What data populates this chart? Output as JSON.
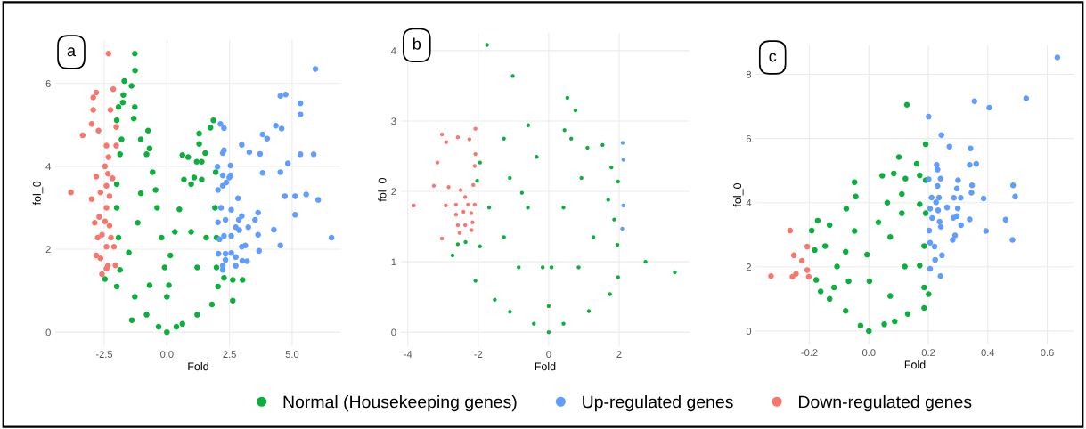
{
  "chart_data": [
    {
      "type": "scatter",
      "xlabel": "Fold",
      "ylabel": "fol_0",
      "annotations": [
        "a"
      ],
      "xlim": [
        -4.45,
        6.95
      ],
      "ylim": [
        -0.34,
        7.05
      ],
      "xticks": [
        {
          "value": -2.5,
          "label": "-2.5"
        },
        {
          "value": 0,
          "label": "0.0"
        },
        {
          "value": 2.5,
          "label": "2.5"
        },
        {
          "value": 5,
          "label": "5.0"
        }
      ],
      "yticks": [
        0,
        2,
        4,
        6
      ],
      "grid": true,
      "legend": "bottom",
      "marker": "circle",
      "series": [
        {
          "name": "Normal (Housekeeping genes)",
          "color": "#0bb03c",
          "x": [
            -1.28,
            -1.27,
            -1.7,
            -1.41,
            -1.74,
            -1.76,
            -1.93,
            -1.28,
            -2.0,
            -1.32,
            -0.75,
            -1.81,
            -1.04,
            -0.69,
            -1.87,
            -0.81,
            -0.57,
            -2.0,
            -0.45,
            -0.39,
            -2.0,
            -1.93,
            -0.21,
            -1.87,
            -2.47,
            -2.0,
            -0.09,
            0,
            -1.4,
            -1.28,
            -0.81,
            0,
            -0.33,
            0.38,
            -0.69,
            -1.52,
            -1.16,
            -1.04,
            1.86,
            1.74,
            1.29,
            1.29,
            0.62,
            0.85,
            1.53,
            1.19,
            1.39,
            1.95,
            0.68,
            1.09,
            1.39,
            0.97,
            0.5,
            0.32,
            0.14,
            0.08,
            1.92,
            1.98,
            1.98,
            2.28,
            2.63,
            3.02,
            2.63,
            2.04,
            1.8,
            1.21,
            0.62,
            1.21,
            0.97,
            1.57
          ],
          "values": [
            6.72,
            6.31,
            6.06,
            5.94,
            5.72,
            5.54,
            5.43,
            5.43,
            5.11,
            5.15,
            4.86,
            4.65,
            4.65,
            4.43,
            4.29,
            4.29,
            3.86,
            3.57,
            3.43,
            3.0,
            3.0,
            2.28,
            2.28,
            1.5,
            1.28,
            1.1,
            1.56,
            0.85,
            0.29,
            0.85,
            0.42,
            0,
            0.13,
            0.13,
            1.13,
            1.92,
            2.64,
            3.35,
            5.11,
            4.93,
            4.79,
            4.54,
            4.27,
            4.22,
            4.32,
            4.11,
            4.11,
            3.86,
            3.68,
            3.73,
            3.68,
            3.57,
            2.96,
            2.42,
            1.85,
            1.13,
            3.0,
            2.28,
            1.56,
            1.31,
            1.26,
            1.26,
            0.76,
            1.1,
            0.67,
            0.42,
            0.2,
            1.56,
            2.42,
            2.28
          ]
        },
        {
          "name": "Up-regulated genes",
          "color": "#619cff",
          "x": [
            5.93,
            4.53,
            4.74,
            5.33,
            5.33,
            2.14,
            2.28,
            4.35,
            4.58,
            3.82,
            4.0,
            2.28,
            2.23,
            2.99,
            3.29,
            3.72,
            5.33,
            5.86,
            4.83,
            2.54,
            2.02,
            3.82,
            4.53,
            2.23,
            2.54,
            2.49,
            2.37,
            2.23,
            2.04,
            4.71,
            5.12,
            5.56,
            6.04,
            2.84,
            2.16,
            2.57,
            5.12,
            3.64,
            2.99,
            2.87,
            3.52,
            2.34,
            2.04,
            2.75,
            3.25,
            2.89,
            4.27,
            6.57,
            3.64,
            2.28,
            2.57,
            2.1,
            2.99,
            3.13,
            4.53,
            3.68,
            2.34,
            2.57,
            2.06,
            2.75,
            3.01,
            3.2,
            2.34,
            2.23,
            2.75,
            2.23
          ],
          "values": [
            6.35,
            5.7,
            5.73,
            5.52,
            5.25,
            5.02,
            4.92,
            4.98,
            4.91,
            4.77,
            4.67,
            4.39,
            4.32,
            4.52,
            4.34,
            4.3,
            4.29,
            4.29,
            4.07,
            4.02,
            3.99,
            3.84,
            3.86,
            3.78,
            3.78,
            3.73,
            3.61,
            3.53,
            3.43,
            3.28,
            3.28,
            3.32,
            3.19,
            3.23,
            3.0,
            2.95,
            2.83,
            2.88,
            2.8,
            2.71,
            2.71,
            2.71,
            2.65,
            2.53,
            2.53,
            2.46,
            2.47,
            2.28,
            2.35,
            2.32,
            2.32,
            2.24,
            2.06,
            2.09,
            2.09,
            1.96,
            1.89,
            1.91,
            1.89,
            1.81,
            1.72,
            1.71,
            1.74,
            1.6,
            1.6,
            1.5
          ]
        },
        {
          "name": "Down-regulated genes",
          "color": "#f8766d",
          "x": [
            -2.33,
            -2.94,
            -2.82,
            -2.14,
            -2.94,
            -2.25,
            -3.0,
            -2.73,
            -3.36,
            -2.02,
            -2.41,
            -2.02,
            -2.33,
            -2.47,
            -2.82,
            -2.35,
            -2.17,
            -2.41,
            -3.83,
            -3.0,
            -2.65,
            -2.29,
            -2.41,
            -2.7,
            -2.88,
            -2.47,
            -2.29,
            -2.59,
            -2.76,
            -2.23,
            -2.41,
            -2.11,
            -2.82,
            -2.65,
            -2.35,
            -2.05,
            -2.41,
            -2.59
          ],
          "values": [
            6.72,
            5.66,
            5.78,
            5.86,
            5.36,
            5.36,
            5.02,
            4.86,
            4.75,
            4.95,
            4.5,
            4.5,
            4.22,
            4.0,
            3.75,
            3.82,
            3.71,
            3.53,
            3.37,
            3.21,
            3.37,
            3.28,
            3.0,
            2.78,
            2.64,
            2.67,
            2.57,
            2.35,
            2.28,
            2.28,
            2.06,
            2.06,
            1.85,
            1.78,
            1.6,
            1.61,
            1.53,
            1.4
          ]
        }
      ]
    },
    {
      "type": "scatter",
      "xlabel": "Fold",
      "ylabel": "fol_0",
      "annotations": [
        "b"
      ],
      "xlim": [
        -4.2,
        4.0
      ],
      "ylim": [
        -0.2,
        4.25
      ],
      "xticks": [
        -4,
        -2,
        0,
        2
      ],
      "yticks": [
        0,
        1,
        2,
        3,
        4
      ],
      "grid": true,
      "marker": "circle",
      "series": [
        {
          "color": "#0bb03c",
          "x": [
            -1.75,
            -1.02,
            0.53,
            0.76,
            -0.58,
            -1.27,
            0.45,
            1.53,
            0.64,
            1.78,
            1.97,
            -1.95,
            -2.03,
            2.75,
            3.58,
            1.97,
            1.74,
            1.14,
            1.95,
            1.86,
            1.69,
            -2.73,
            -2.58,
            -2.36,
            -2.08,
            -1.53,
            -1.1,
            -0.42,
            0,
            0.42,
            0,
            0.08,
            -0.17,
            -0.59,
            0.42,
            -1.1,
            0.93,
            -1.27,
            1.27,
            -0.85,
            0.85,
            -1.69,
            1.1,
            -0.34,
            -0.76,
            -1.95
          ],
          "values": [
            4.08,
            3.64,
            3.33,
            3.15,
            2.94,
            2.75,
            2.87,
            2.66,
            2.75,
            2.34,
            2.14,
            2.41,
            2.15,
            1.0,
            0.85,
            0.78,
            0.54,
            0.3,
            1.24,
            1.6,
            1.88,
            1.09,
            1.25,
            1.28,
            0.73,
            0.46,
            0.29,
            0.12,
            0,
            0.12,
            0.37,
            0.92,
            0.92,
            1.77,
            1.77,
            2.19,
            2.19,
            1.35,
            1.35,
            0.92,
            0.92,
            1.77,
            2.62,
            2.49,
            1.98,
            1.22
          ]
        },
        {
          "color": "#619cff",
          "x": [
            2.1,
            2.12,
            2.12,
            2.09
          ],
          "values": [
            2.69,
            2.45,
            1.8,
            1.47
          ]
        },
        {
          "color": "#f8766d",
          "x": [
            -3.03,
            -2.91,
            -2.58,
            -2.25,
            -2.08,
            -2.08,
            -3.16,
            -2.1,
            -3.26,
            -2.84,
            -2.5,
            -2.14,
            -3.83,
            -2.92,
            -2.63,
            -2.37,
            -2.29,
            -2.1,
            -2.63,
            -2.42,
            -2.2,
            -2.58,
            -2.37,
            -2.16,
            -2.53,
            -2.19,
            -3.03
          ],
          "values": [
            2.81,
            2.7,
            2.77,
            2.74,
            2.89,
            2.53,
            2.41,
            2.36,
            2.08,
            2.06,
            2.02,
            2.09,
            1.8,
            1.8,
            1.81,
            1.92,
            1.81,
            1.81,
            1.67,
            1.71,
            1.69,
            1.52,
            1.52,
            1.56,
            1.41,
            1.45,
            1.33
          ]
        }
      ]
    },
    {
      "type": "scatter",
      "xlabel": "Fold",
      "ylabel": "fol_0",
      "annotations": [
        "c"
      ],
      "xlim": [
        -0.38,
        0.69
      ],
      "ylim": [
        -0.42,
        8.9
      ],
      "xticks": [
        {
          "value": -0.2,
          "label": "-0.2"
        },
        {
          "value": 0,
          "label": "0.0"
        },
        {
          "value": 0.2,
          "label": "0.2"
        },
        {
          "value": 0.4,
          "label": "0.4"
        },
        {
          "value": 0.6,
          "label": "0.6"
        }
      ],
      "yticks": [
        0,
        2,
        4,
        6,
        8
      ],
      "grid": true,
      "marker": "circle",
      "series": [
        {
          "color": "#0bb03c",
          "x": [
            0.128,
            0.191,
            0.101,
            0.161,
            0.045,
            0.084,
            0.123,
            0.171,
            -0.048,
            0.191,
            -0.044,
            0.062,
            0.111,
            0.171,
            -0.076,
            -0.172,
            -0.192,
            -0.132,
            -0.182,
            -0.147,
            -0.177,
            -0.162,
            -0.132,
            -0.117,
            -0.078,
            -0.028,
            0,
            0.052,
            0.087,
            0.131,
            0.186,
            0.201,
            0.186,
            0.171,
            0.186,
            0.191,
            -0.006,
            0.002,
            -0.078,
            0.072,
            0.121,
            -0.068,
            0.072,
            -0.107,
            -0.048,
            0.032,
            0.111
          ],
          "values": [
            7.05,
            5.82,
            5.42,
            5.21,
            4.84,
            4.91,
            4.75,
            4.85,
            4.64,
            4.7,
            4.19,
            4.0,
            4.27,
            3.95,
            3.81,
            3.44,
            3.13,
            3.3,
            2.52,
            2.65,
            1.59,
            1.23,
            1.0,
            1.36,
            0.63,
            0.17,
            0,
            0.21,
            0.3,
            0.53,
            0.72,
            1.15,
            1.36,
            2.04,
            2.65,
            3.67,
            2.38,
            1.55,
            2.47,
            2.93,
            2.01,
            1.55,
            1.09,
            2.01,
            3.12,
            3.39,
            3.67
          ]
        },
        {
          "color": "#619cff",
          "x": [
            0.634,
            0.529,
            0.355,
            0.405,
            0.201,
            0.244,
            0.271,
            0.342,
            0.228,
            0.339,
            0.361,
            0.231,
            0.241,
            0.3,
            0.201,
            0.231,
            0.347,
            0.485,
            0.296,
            0.345,
            0.492,
            0.211,
            0.236,
            0.286,
            0.309,
            0.386,
            0.226,
            0.263,
            0.299,
            0.206,
            0.233,
            0.284,
            0.296,
            0.339,
            0.46,
            0.213,
            0.238,
            0.242,
            0.31,
            0.203,
            0.394,
            0.29,
            0.282,
            0.483,
            0.206,
            0.221,
            0.246,
            0.223,
            0.206,
            0.241
          ],
          "values": [
            8.53,
            7.25,
            7.16,
            6.96,
            6.68,
            6.11,
            5.75,
            5.69,
            5.18,
            5.18,
            5.21,
            5.03,
            4.75,
            4.7,
            4.73,
            4.52,
            4.54,
            4.54,
            4.44,
            4.31,
            4.19,
            4.16,
            4.16,
            4.15,
            4.15,
            4.13,
            4.01,
            3.85,
            3.82,
            3.81,
            3.76,
            3.53,
            3.58,
            3.48,
            3.47,
            3.52,
            3.41,
            3.25,
            3.3,
            3.13,
            3.12,
            2.98,
            2.84,
            2.84,
            2.75,
            2.63,
            2.36,
            2.22,
            1.94,
            1.71
          ]
        },
        {
          "color": "#f8766d",
          "x": [
            -0.265,
            -0.207,
            -0.252,
            -0.225,
            -0.207,
            -0.329,
            -0.257,
            -0.245,
            -0.202
          ],
          "values": [
            3.13,
            2.63,
            2.36,
            2.19,
            1.9,
            1.71,
            1.69,
            1.78,
            1.69
          ]
        }
      ]
    }
  ]
}
